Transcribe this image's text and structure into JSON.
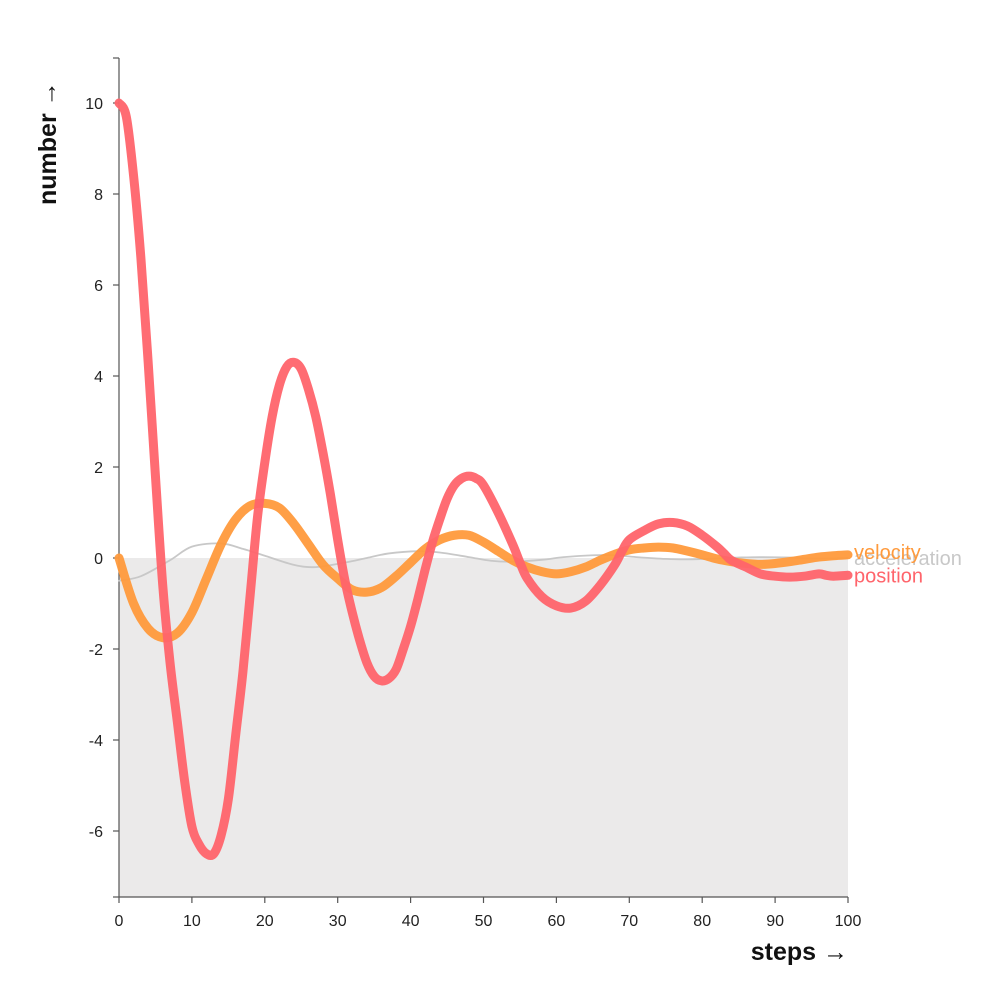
{
  "chart_data": {
    "type": "line",
    "xlabel": "steps →",
    "ylabel": "number →",
    "xlim": [
      0,
      100
    ],
    "ylim": [
      -7.5,
      11
    ],
    "x_ticks": [
      0,
      10,
      20,
      30,
      40,
      50,
      60,
      70,
      80,
      90,
      100
    ],
    "y_ticks": [
      -6,
      -4,
      -2,
      0,
      2,
      4,
      6,
      8,
      10
    ],
    "negative_region_shaded": true,
    "shade_color": "#ebeaea",
    "series": [
      {
        "name": "acceleration",
        "color": "#c8c8c8",
        "x": [
          0,
          3,
          7,
          10,
          14,
          17,
          20,
          24,
          27,
          31,
          34,
          37,
          41,
          44,
          48,
          51,
          54,
          58,
          61,
          65,
          68,
          71,
          75,
          78,
          82,
          85,
          88,
          92,
          95,
          100
        ],
        "values": [
          -0.5,
          -0.4,
          -0.05,
          0.25,
          0.32,
          0.2,
          0.05,
          -0.15,
          -0.2,
          -0.1,
          0.0,
          0.1,
          0.15,
          0.12,
          0.02,
          -0.06,
          -0.08,
          -0.04,
          0.02,
          0.06,
          0.06,
          0.02,
          -0.02,
          -0.03,
          -0.01,
          0.01,
          0.02,
          0.01,
          -0.01,
          0.0
        ]
      },
      {
        "name": "velocity",
        "color": "#ff9a3c",
        "x": [
          0,
          2,
          4,
          6,
          8,
          10,
          12,
          14,
          16,
          18,
          20,
          22,
          24,
          26,
          28,
          30,
          32,
          34,
          36,
          38,
          40,
          42,
          44,
          46,
          48,
          50,
          52,
          54,
          56,
          58,
          60,
          62,
          64,
          66,
          68,
          70,
          72,
          74,
          76,
          78,
          80,
          82,
          84,
          86,
          88,
          90,
          92,
          94,
          96,
          98,
          100
        ],
        "values": [
          0,
          -1.0,
          -1.55,
          -1.75,
          -1.65,
          -1.2,
          -0.45,
          0.3,
          0.85,
          1.15,
          1.2,
          1.1,
          0.75,
          0.3,
          -0.15,
          -0.45,
          -0.7,
          -0.75,
          -0.65,
          -0.4,
          -0.1,
          0.2,
          0.4,
          0.5,
          0.5,
          0.35,
          0.15,
          -0.05,
          -0.2,
          -0.3,
          -0.35,
          -0.3,
          -0.2,
          -0.05,
          0.08,
          0.18,
          0.22,
          0.24,
          0.22,
          0.15,
          0.07,
          -0.02,
          -0.08,
          -0.12,
          -0.14,
          -0.12,
          -0.08,
          -0.03,
          0.02,
          0.05,
          0.07
        ]
      },
      {
        "name": "position",
        "color": "#ff646b",
        "x": [
          0,
          1,
          2,
          3,
          4,
          5,
          6,
          7,
          8,
          9,
          10,
          11,
          12,
          13,
          14,
          15,
          16,
          17,
          18,
          19,
          20,
          21,
          22,
          23,
          24,
          25,
          26,
          27,
          28,
          29,
          30,
          31,
          32,
          33,
          34,
          35,
          36,
          37,
          38,
          39,
          40,
          41,
          42,
          43,
          44,
          45,
          46,
          47,
          48,
          49,
          50,
          52,
          54,
          55,
          56,
          58,
          60,
          62,
          64,
          66,
          68,
          69,
          70,
          72,
          74,
          76,
          78,
          80,
          82,
          83,
          84,
          86,
          88,
          90,
          92,
          94,
          96,
          97,
          98,
          100
        ],
        "values": [
          10,
          9.7,
          8.4,
          6.6,
          4.3,
          1.8,
          -0.6,
          -2.3,
          -3.6,
          -4.9,
          -5.9,
          -6.3,
          -6.5,
          -6.5,
          -6.1,
          -5.3,
          -3.9,
          -2.5,
          -0.8,
          0.9,
          2.1,
          3.1,
          3.8,
          4.2,
          4.3,
          4.15,
          3.7,
          3.1,
          2.3,
          1.4,
          0.4,
          -0.5,
          -1.2,
          -1.8,
          -2.3,
          -2.6,
          -2.7,
          -2.65,
          -2.45,
          -2.0,
          -1.5,
          -0.9,
          -0.25,
          0.35,
          0.85,
          1.3,
          1.6,
          1.75,
          1.8,
          1.75,
          1.6,
          1.0,
          0.3,
          -0.1,
          -0.45,
          -0.85,
          -1.05,
          -1.1,
          -0.95,
          -0.6,
          -0.15,
          0.15,
          0.4,
          0.6,
          0.75,
          0.78,
          0.7,
          0.5,
          0.25,
          0.1,
          -0.05,
          -0.2,
          -0.35,
          -0.4,
          -0.42,
          -0.4,
          -0.35,
          -0.38,
          -0.4,
          -0.38
        ]
      }
    ]
  }
}
